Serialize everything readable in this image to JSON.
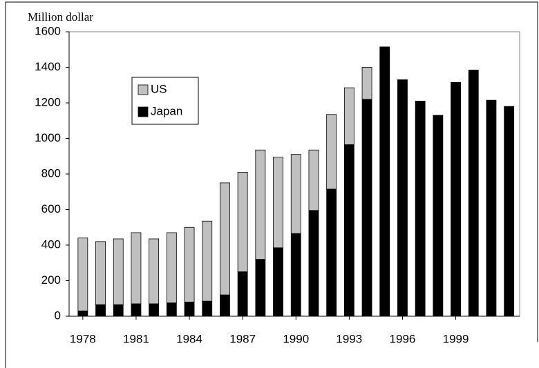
{
  "chart_data": {
    "type": "stacked-bar",
    "y_label": "Million dollar",
    "categories": [
      "1978",
      null,
      null,
      "1981",
      null,
      null,
      "1984",
      null,
      null,
      "1987",
      null,
      null,
      "1990",
      null,
      null,
      "1993",
      null,
      null,
      "1996",
      null,
      null,
      "1999",
      null,
      null,
      null
    ],
    "series": [
      {
        "name": "Japan",
        "color": "#000000",
        "values": [
          30,
          65,
          65,
          70,
          70,
          75,
          80,
          85,
          120,
          250,
          320,
          385,
          465,
          595,
          715,
          965,
          1220,
          1515,
          1330,
          1210,
          1130,
          1315,
          1385,
          1215,
          1180
        ]
      },
      {
        "name": "US",
        "color": "#c0c0c0",
        "values": [
          410,
          355,
          370,
          400,
          365,
          395,
          420,
          450,
          630,
          560,
          615,
          510,
          445,
          340,
          420,
          320,
          180,
          null,
          null,
          null,
          null,
          null,
          null,
          null,
          null
        ]
      }
    ],
    "ylim": [
      0,
      1600
    ],
    "yticks": [
      0,
      200,
      400,
      600,
      800,
      1000,
      1200,
      1400,
      1600
    ]
  }
}
